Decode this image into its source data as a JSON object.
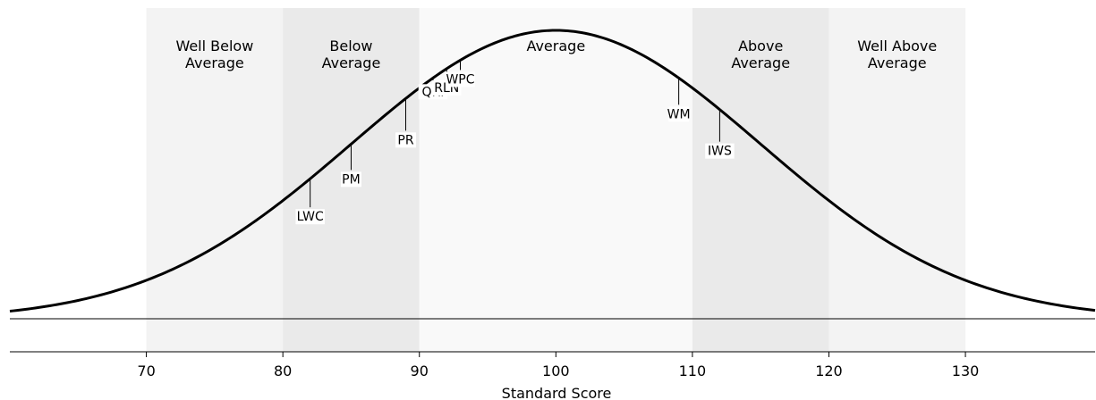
{
  "chart_data": {
    "type": "area",
    "xlabel": "Standard Score",
    "xlim": [
      60,
      139.5
    ],
    "x_ticks": [
      70,
      80,
      90,
      100,
      110,
      120,
      130
    ],
    "distribution": {
      "kind": "normal",
      "mean": 100,
      "sd": 15
    },
    "bands": [
      {
        "label_lines": [
          "Well Below",
          "Average"
        ],
        "range": [
          70,
          80
        ],
        "color": "#f3f3f3"
      },
      {
        "label_lines": [
          "Below",
          "Average"
        ],
        "range": [
          80,
          90
        ],
        "color": "#eaeaea"
      },
      {
        "label_lines": [
          "Average"
        ],
        "range": [
          90,
          110
        ],
        "color": "#f9f9f9"
      },
      {
        "label_lines": [
          "Above",
          "Average"
        ],
        "range": [
          110,
          120
        ],
        "color": "#eaeaea"
      },
      {
        "label_lines": [
          "Well Above",
          "Average"
        ],
        "range": [
          120,
          130
        ],
        "color": "#f3f3f3"
      }
    ],
    "scores": [
      {
        "label": "LWC",
        "value": 82
      },
      {
        "label": "PM",
        "value": 85
      },
      {
        "label": "PR",
        "value": 89
      },
      {
        "label": "QRI",
        "value": 91
      },
      {
        "label": "RLN",
        "value": 92
      },
      {
        "label": "WPC",
        "value": 93
      },
      {
        "label": "WM",
        "value": 109
      },
      {
        "label": "IWS",
        "value": 112
      }
    ]
  }
}
